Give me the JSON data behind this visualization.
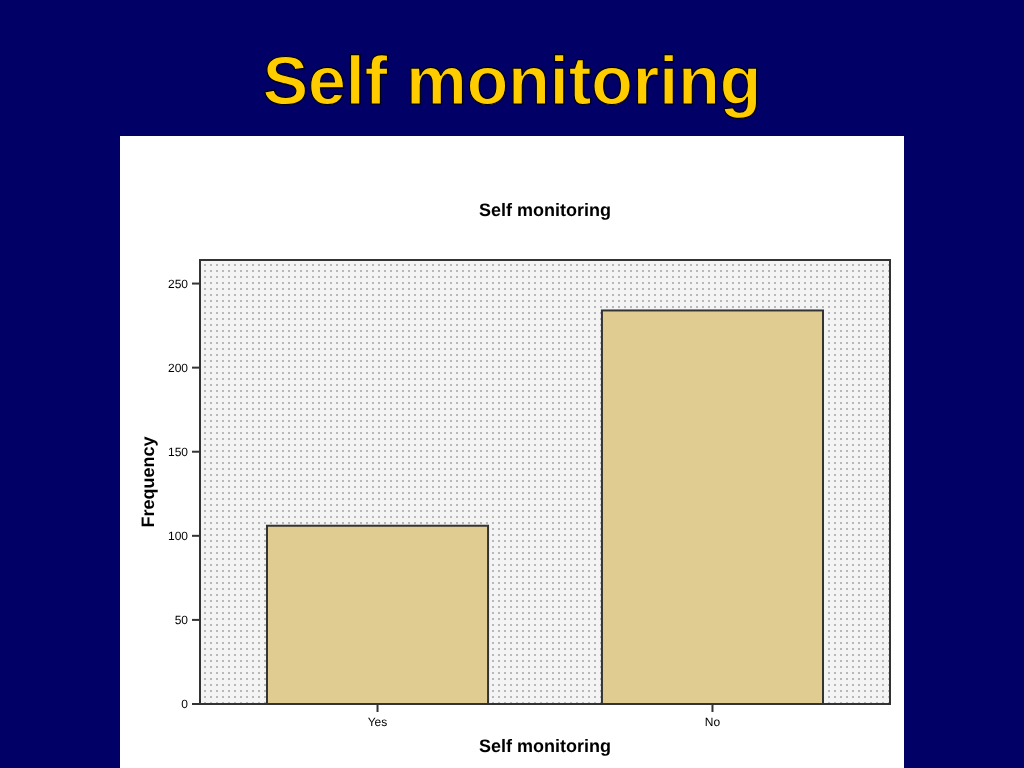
{
  "chart_data": {
    "type": "bar",
    "title": "Self monitoring",
    "subtitle": "Self monitoring",
    "xlabel": "Self monitoring",
    "ylabel": "Frequency",
    "categories": [
      "Yes",
      "No"
    ],
    "values": [
      106,
      234
    ],
    "color": "#e0cc90",
    "ylim": [
      0,
      264
    ],
    "yticks": [
      0,
      50,
      100,
      150,
      200,
      250
    ],
    "grid": false
  }
}
